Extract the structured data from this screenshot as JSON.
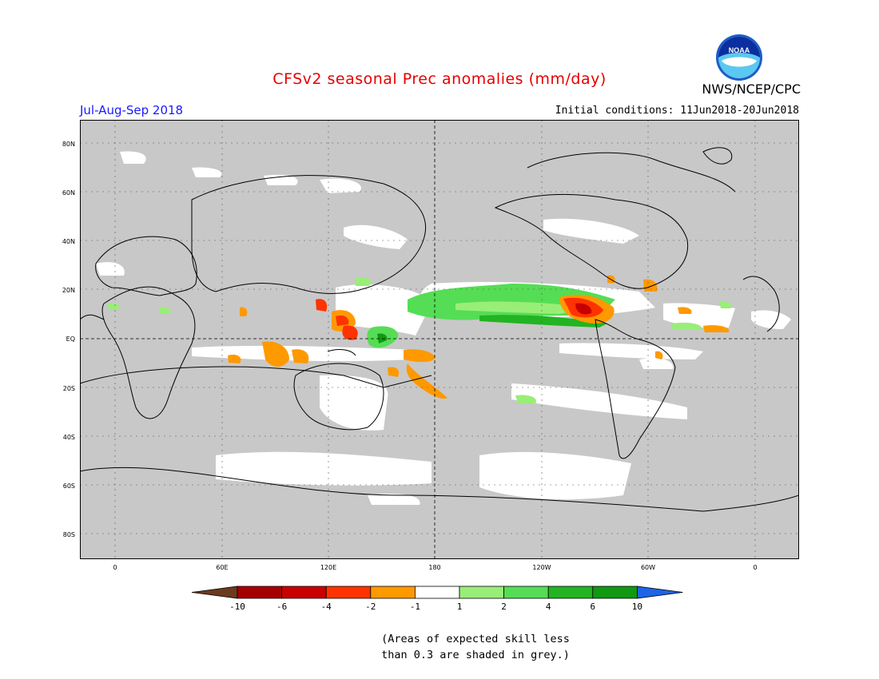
{
  "title": "CFSv2 seasonal Prec anomalies (mm/day)",
  "period": "Jul-Aug-Sep 2018",
  "initial_conditions": "Initial conditions: 11Jun2018-20Jun2018",
  "agency": "NWS/NCEP/CPC",
  "logo_text": "NOAA",
  "axes": {
    "lat_labels": [
      "80N",
      "60N",
      "40N",
      "20N",
      "EQ",
      "20S",
      "40S",
      "60S",
      "80S"
    ],
    "lon_labels": [
      "0",
      "60E",
      "120E",
      "180",
      "120W",
      "60W",
      "0"
    ]
  },
  "legend": {
    "labels": [
      "-10",
      "-6",
      "-4",
      "-2",
      "-1",
      "1",
      "2",
      "4",
      "6",
      "10"
    ],
    "colors": [
      "#6b3b1f",
      "#a50000",
      "#c80000",
      "#ff3300",
      "#ff9900",
      "#ffffff",
      "#99ee77",
      "#55dd55",
      "#22b422",
      "#119911",
      "#1e64e6"
    ]
  },
  "note_line1": "(Areas of expected skill less",
  "note_line2": "than 0.3 are shaded in grey.)"
}
